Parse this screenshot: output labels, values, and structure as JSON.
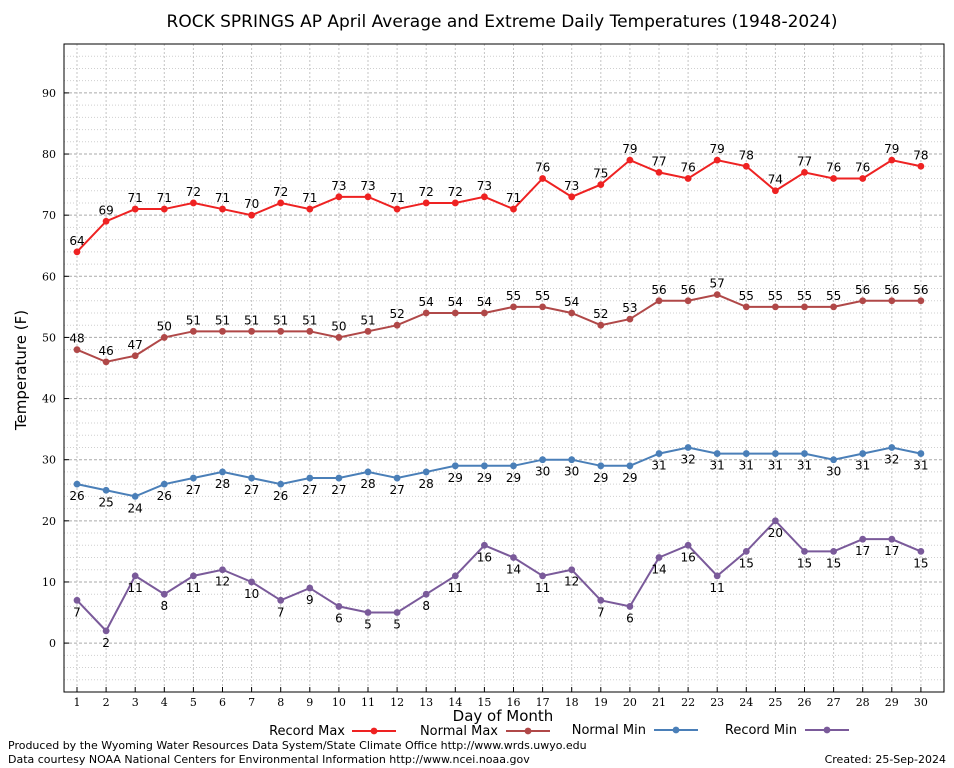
{
  "chart_data": {
    "type": "line",
    "title": "ROCK SPRINGS AP April Average and Extreme Daily Temperatures (1948-2024)",
    "xlabel": "Day of Month",
    "ylabel": "Temperature (F)",
    "xlim": [
      1,
      30
    ],
    "ylim": [
      -8,
      98
    ],
    "yticks": [
      0,
      10,
      20,
      30,
      40,
      50,
      60,
      70,
      80,
      90
    ],
    "x": [
      1,
      2,
      3,
      4,
      5,
      6,
      7,
      8,
      9,
      10,
      11,
      12,
      13,
      14,
      15,
      16,
      17,
      18,
      19,
      20,
      21,
      22,
      23,
      24,
      25,
      26,
      27,
      28,
      29,
      30
    ],
    "grid": true,
    "legend_position": "bottom",
    "series": [
      {
        "name": "Record Max",
        "color": "#ee2222",
        "label_side": "above",
        "values": [
          64,
          69,
          71,
          71,
          72,
          71,
          70,
          72,
          71,
          73,
          73,
          71,
          72,
          72,
          73,
          71,
          76,
          73,
          75,
          79,
          77,
          76,
          79,
          78,
          74,
          77,
          76,
          76,
          79,
          78
        ]
      },
      {
        "name": "Normal Max",
        "color": "#b04848",
        "label_side": "above",
        "values": [
          48,
          46,
          47,
          50,
          51,
          51,
          51,
          51,
          51,
          50,
          51,
          52,
          54,
          54,
          54,
          55,
          55,
          54,
          52,
          53,
          56,
          56,
          57,
          55,
          55,
          55,
          55,
          56,
          56,
          56
        ]
      },
      {
        "name": "Normal Min",
        "color": "#4a7fb8",
        "label_side": "below",
        "values": [
          26,
          25,
          24,
          26,
          27,
          28,
          27,
          26,
          27,
          27,
          28,
          27,
          28,
          29,
          29,
          29,
          30,
          30,
          29,
          29,
          31,
          32,
          31,
          31,
          31,
          31,
          30,
          31,
          32,
          31
        ]
      },
      {
        "name": "Record Min",
        "color": "#7a5a9a",
        "label_side": "below",
        "values": [
          7,
          2,
          11,
          8,
          11,
          12,
          10,
          7,
          9,
          6,
          5,
          5,
          8,
          11,
          16,
          14,
          11,
          12,
          7,
          6,
          14,
          16,
          11,
          15,
          20,
          15,
          15,
          17,
          17,
          15
        ]
      }
    ]
  },
  "footer": {
    "line1": "Produced by the Wyoming Water Resources Data System/State Climate Office http://www.wrds.uwyo.edu",
    "line2": "Data courtesy NOAA National Centers for Environmental Information http://www.ncei.noaa.gov",
    "created": "Created:  25-Sep-2024"
  }
}
